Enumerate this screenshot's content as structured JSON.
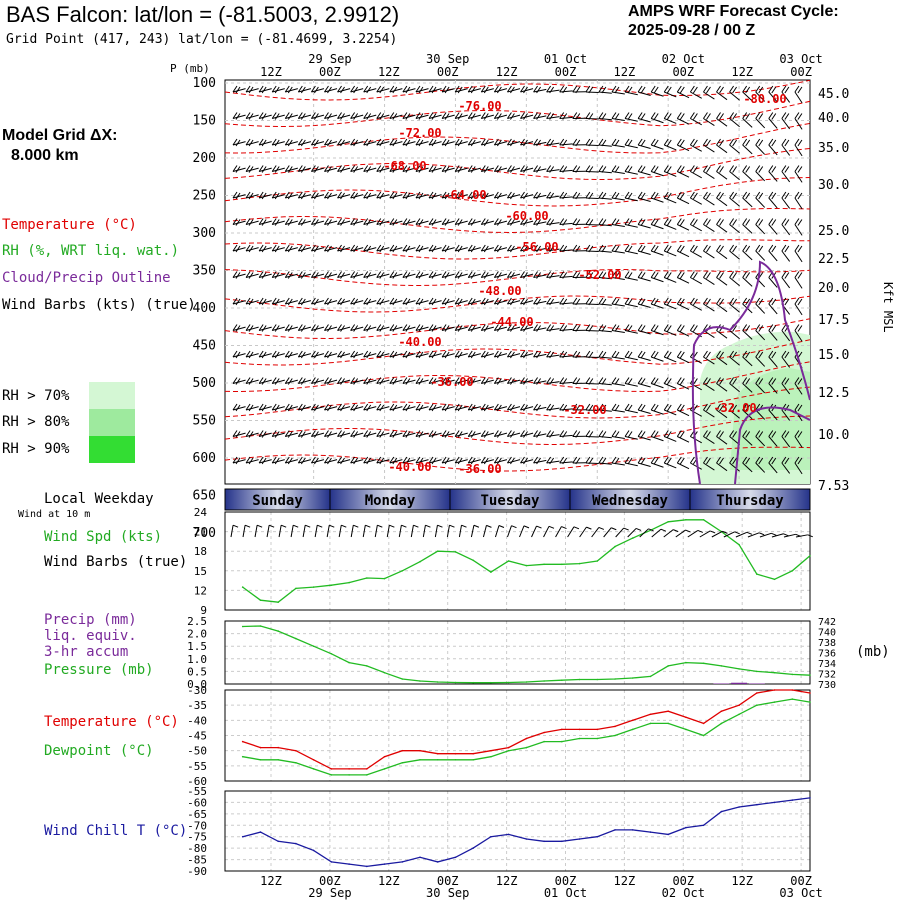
{
  "header": {
    "title": "BAS Falcon:  lat/lon = (-81.5003, 2.9912)",
    "grid_point": "Grid Point (417, 243) lat/lon = (-81.4699, 3.2254)",
    "cycle_line1": "AMPS WRF Forecast Cycle:",
    "cycle_line2": "2025-09-28 / 00  Z",
    "grid_line1": "Model Grid ΔX:",
    "grid_line2": "8.000 km"
  },
  "legend": {
    "temperature": "Temperature (°C)",
    "rh": "RH (%, WRT liq. wat.)",
    "cloud": "Cloud/Precip Outline",
    "wind": "Wind Barbs (kts) (true)",
    "rh70": "RH > 70%",
    "rh80": "RH > 80%",
    "rh90": "RH > 90%",
    "local_weekday": "Local Weekday",
    "wind_10m": "Wind at 10 m",
    "wind_spd": "Wind Spd (kts)",
    "wind_barbs": "Wind Barbs (true)",
    "precip": "Precip (mm)",
    "liq": "liq. equiv.",
    "accum": "3-hr accum",
    "pressure": "Pressure (mb)",
    "mb": "(mb)",
    "temp2": "Temperature (°C)",
    "dewpoint": "Dewpoint (°C)",
    "windchill": "Wind Chill T (°C)"
  },
  "colors": {
    "temp": "#e00000",
    "rh": "#22bb22",
    "cloud": "#7a2a9a",
    "wind": "#000000",
    "rh70": "#d4f7d4",
    "rh80": "#9eea9e",
    "rh90": "#33dd33",
    "windchill": "#1a1aa0"
  },
  "time_axis": {
    "top_dates": [
      "29 Sep",
      "30 Sep",
      "01 Oct",
      "02 Oct",
      "03 Oct"
    ],
    "bottom_dates": [
      "29 Sep",
      "30 Sep",
      "01 Oct",
      "02 Oct",
      "03 Oct"
    ],
    "hour_labels": [
      "12Z",
      "00Z",
      "12Z",
      "00Z",
      "12Z",
      "00Z",
      "12Z",
      "00Z",
      "12Z",
      "00Z"
    ],
    "weekdays": [
      "Sunday",
      "Monday",
      "Tuesday",
      "Wednesday",
      "Thursday"
    ]
  },
  "chart_data": [
    {
      "type": "contour",
      "name": "cross-section",
      "ylabel_left": "P (mb)",
      "ylabel_right": "Kft MSL",
      "pressure_ticks": [
        "100",
        "150",
        "200",
        "250",
        "300",
        "350",
        "400",
        "450",
        "500",
        "550",
        "600",
        "650",
        "700"
      ],
      "height_ticks": [
        "45.0",
        "40.0",
        "35.0",
        "30.0",
        "25.0",
        "22.5",
        "20.0",
        "17.5",
        "15.0",
        "12.5",
        "10.0",
        "7.53"
      ],
      "temperature_labels": [
        "-80.00",
        "-76.00",
        "-72.00",
        "-68.00",
        "-64.00",
        "-60.00",
        "-56.00",
        "-52.00",
        "-48.00",
        "-44.00",
        "-40.00",
        "-36.00",
        "-32.00",
        "-32.00",
        "-40.00",
        "-36.00"
      ]
    },
    {
      "type": "line",
      "name": "wind speed",
      "ylim": [
        9,
        24
      ],
      "yticks": [
        "24",
        "21",
        "18",
        "15",
        "12",
        "9"
      ],
      "x": [
        0,
        3,
        6,
        9,
        12,
        15,
        18,
        21,
        24,
        27,
        30,
        33,
        36,
        39,
        42,
        45,
        48,
        51,
        54,
        57,
        60,
        63,
        66,
        69,
        72,
        75,
        78,
        81,
        84,
        87,
        90,
        93,
        96
      ],
      "values": [
        12.5,
        10.5,
        10.2,
        12.3,
        12.5,
        12.8,
        13.2,
        13.9,
        13.8,
        15.0,
        16.4,
        18.0,
        17.9,
        16.6,
        14.8,
        16.5,
        15.8,
        16.0,
        16.0,
        16.1,
        16.5,
        18.7,
        20.0,
        21.2,
        22.5,
        22.8,
        22.8,
        21.0,
        19.0,
        14.5,
        13.7,
        15.0,
        17.3
      ]
    },
    {
      "type": "line",
      "name": "precip/pressure",
      "ylim": [
        0.0,
        2.5
      ],
      "yticks": [
        "2.5",
        "2.0",
        "1.5",
        "1.0",
        "0.5",
        "0.0"
      ],
      "yticks_right": [
        "742",
        "740",
        "738",
        "736",
        "734",
        "732",
        "730"
      ],
      "x": [
        0,
        3,
        6,
        9,
        12,
        15,
        18,
        21,
        24,
        27,
        30,
        33,
        36,
        39,
        42,
        45,
        48,
        51,
        54,
        57,
        60,
        63,
        66,
        69,
        72,
        75,
        78,
        81,
        84,
        87,
        90,
        93,
        96
      ],
      "values": [
        2.28,
        2.3,
        2.1,
        1.8,
        1.5,
        1.2,
        0.85,
        0.72,
        0.45,
        0.2,
        0.12,
        0.08,
        0.06,
        0.05,
        0.05,
        0.06,
        0.08,
        0.12,
        0.15,
        0.18,
        0.18,
        0.2,
        0.24,
        0.3,
        0.72,
        0.85,
        0.82,
        0.72,
        0.6,
        0.5,
        0.45,
        0.38,
        0.35
      ],
      "precip": [
        0,
        0,
        0,
        0,
        0,
        0,
        0,
        0,
        0,
        0,
        0,
        0,
        0,
        0,
        0,
        0,
        0,
        0,
        0,
        0,
        0,
        0,
        0,
        0,
        0,
        0,
        0,
        0.02,
        0.05,
        0.02,
        0,
        0,
        0
      ]
    },
    {
      "type": "line",
      "name": "temperature/dewpoint",
      "ylim": [
        -60,
        -30
      ],
      "yticks": [
        "-30",
        "-35",
        "-40",
        "-45",
        "-50",
        "-55",
        "-60"
      ],
      "x": [
        0,
        3,
        6,
        9,
        12,
        15,
        18,
        21,
        24,
        27,
        30,
        33,
        36,
        39,
        42,
        45,
        48,
        51,
        54,
        57,
        60,
        63,
        66,
        69,
        72,
        75,
        78,
        81,
        84,
        87,
        90,
        93,
        96
      ],
      "series": [
        {
          "name": "Temperature (°C)",
          "values": [
            -47,
            -49,
            -49,
            -50,
            -53,
            -56,
            -56,
            -56,
            -52,
            -50,
            -50,
            -51,
            -51,
            -51,
            -50,
            -49,
            -46,
            -44,
            -43,
            -43,
            -43,
            -42,
            -40,
            -38,
            -37,
            -39,
            -41,
            -37,
            -35,
            -31,
            -30,
            -30,
            -31
          ]
        },
        {
          "name": "Dewpoint (°C)",
          "values": [
            -52,
            -53,
            -53,
            -54,
            -56,
            -58,
            -58,
            -58,
            -56,
            -54,
            -53,
            -53,
            -53,
            -53,
            -52,
            -50,
            -49,
            -47,
            -47,
            -46,
            -46,
            -45,
            -43,
            -41,
            -41,
            -43,
            -45,
            -41,
            -38,
            -35,
            -34,
            -33,
            -34
          ]
        }
      ]
    },
    {
      "type": "line",
      "name": "wind chill",
      "ylim": [
        -90,
        -55
      ],
      "yticks": [
        "-55",
        "-60",
        "-65",
        "-70",
        "-75",
        "-80",
        "-85",
        "-90"
      ],
      "x": [
        0,
        3,
        6,
        9,
        12,
        15,
        18,
        21,
        24,
        27,
        30,
        33,
        36,
        39,
        42,
        45,
        48,
        51,
        54,
        57,
        60,
        63,
        66,
        69,
        72,
        75,
        78,
        81,
        84,
        87,
        90,
        93,
        96
      ],
      "values": [
        -75,
        -73,
        -77,
        -78,
        -81,
        -86,
        -87,
        -88,
        -87,
        -86,
        -84,
        -86,
        -84,
        -80,
        -75,
        -74,
        -76,
        -77,
        -77,
        -76,
        -75,
        -72,
        -72,
        -73,
        -74,
        -71,
        -70,
        -64,
        -62,
        -61,
        -60,
        -59,
        -58
      ]
    }
  ]
}
